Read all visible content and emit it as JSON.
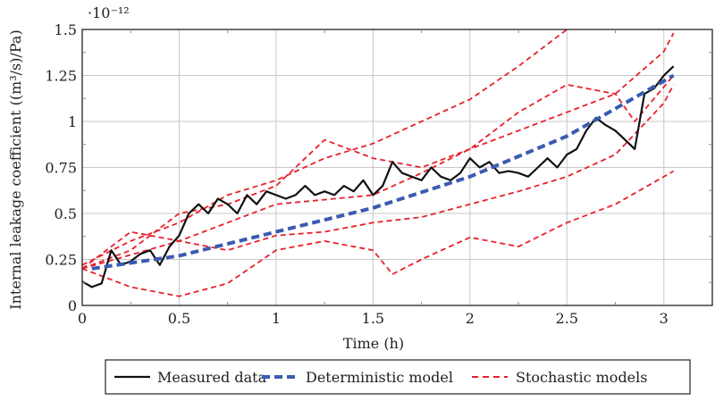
{
  "chart_data": {
    "type": "line",
    "title": "",
    "xlabel": "Time (h)",
    "ylabel": "Internal leakage coefficient ((m³/s)/Pa)",
    "y_multiplier": "·10⁻¹²",
    "xlim": [
      0,
      3.25
    ],
    "ylim": [
      0,
      1.5
    ],
    "xticks": [
      "0",
      "0.5",
      "1",
      "1.5",
      "2",
      "2.5",
      "3"
    ],
    "xtick_values": [
      0,
      0.5,
      1,
      1.5,
      2,
      2.5,
      3
    ],
    "yticks": [
      "0",
      "0.25",
      "0.5",
      "0.75",
      "1",
      "1.25",
      "1.5"
    ],
    "ytick_values": [
      0,
      0.25,
      0.5,
      0.75,
      1,
      1.25,
      1.5
    ],
    "grid": true,
    "legend_position": "bottom",
    "series": [
      {
        "name": "Measured data",
        "style": "solid",
        "color": "#111111",
        "x": [
          0,
          0.05,
          0.1,
          0.15,
          0.2,
          0.25,
          0.3,
          0.35,
          0.4,
          0.45,
          0.5,
          0.55,
          0.6,
          0.65,
          0.7,
          0.75,
          0.8,
          0.85,
          0.9,
          0.95,
          1.0,
          1.05,
          1.1,
          1.15,
          1.2,
          1.25,
          1.3,
          1.35,
          1.4,
          1.45,
          1.5,
          1.55,
          1.6,
          1.65,
          1.7,
          1.75,
          1.8,
          1.85,
          1.9,
          1.95,
          2.0,
          2.05,
          2.1,
          2.15,
          2.2,
          2.25,
          2.3,
          2.35,
          2.4,
          2.45,
          2.5,
          2.55,
          2.6,
          2.65,
          2.7,
          2.75,
          2.8,
          2.85,
          2.9,
          2.95,
          3.0,
          3.05
        ],
        "y": [
          0.13,
          0.1,
          0.12,
          0.3,
          0.22,
          0.24,
          0.28,
          0.3,
          0.22,
          0.32,
          0.38,
          0.5,
          0.55,
          0.5,
          0.58,
          0.55,
          0.5,
          0.6,
          0.55,
          0.62,
          0.6,
          0.58,
          0.6,
          0.65,
          0.6,
          0.62,
          0.6,
          0.65,
          0.62,
          0.68,
          0.6,
          0.65,
          0.78,
          0.72,
          0.7,
          0.68,
          0.75,
          0.7,
          0.68,
          0.72,
          0.8,
          0.75,
          0.78,
          0.72,
          0.73,
          0.72,
          0.7,
          0.75,
          0.8,
          0.75,
          0.82,
          0.85,
          0.95,
          1.02,
          0.98,
          0.95,
          0.9,
          0.85,
          1.15,
          1.18,
          1.25,
          1.3
        ]
      },
      {
        "name": "Deterministic model",
        "style": "dashed",
        "color": "#3a5bb0",
        "x": [
          0.05,
          0.5,
          1.0,
          1.5,
          2.0,
          2.5,
          3.0,
          3.05
        ],
        "y": [
          0.2,
          0.27,
          0.4,
          0.53,
          0.7,
          0.92,
          1.22,
          1.25
        ]
      },
      {
        "name": "Stochastic models",
        "style": "dashed",
        "color": "#e8202a",
        "x": [
          0,
          0.25,
          0.5,
          0.75,
          1.0,
          1.25,
          1.5,
          1.75,
          2.0,
          2.25,
          2.5
        ],
        "y": [
          0.22,
          0.35,
          0.45,
          0.6,
          0.68,
          0.8,
          0.88,
          1.0,
          1.12,
          1.3,
          1.5
        ]
      },
      {
        "style": "dashed",
        "color": "#e8202a",
        "x": [
          0,
          0.25,
          0.5,
          0.75,
          1.0,
          1.25,
          1.5,
          1.75,
          2.0,
          2.25,
          2.5,
          2.75,
          3.0,
          3.05
        ],
        "y": [
          0.2,
          0.3,
          0.5,
          0.55,
          0.65,
          0.9,
          0.8,
          0.75,
          0.85,
          0.95,
          1.05,
          1.15,
          1.38,
          1.48
        ]
      },
      {
        "style": "dashed",
        "color": "#e8202a",
        "x": [
          0,
          0.5,
          1.0,
          1.5,
          1.75,
          2.0,
          2.25,
          2.5,
          2.75,
          2.85,
          3.05
        ],
        "y": [
          0.2,
          0.35,
          0.55,
          0.6,
          0.72,
          0.85,
          1.05,
          1.2,
          1.15,
          1.0,
          1.25
        ]
      },
      {
        "style": "dashed",
        "color": "#e8202a",
        "x": [
          0,
          0.25,
          0.5,
          0.75,
          1.0,
          1.25,
          1.5,
          1.75,
          2.0,
          2.25,
          2.5,
          2.75,
          3.0,
          3.05
        ],
        "y": [
          0.2,
          0.4,
          0.35,
          0.3,
          0.38,
          0.4,
          0.45,
          0.48,
          0.55,
          0.62,
          0.7,
          0.82,
          1.1,
          1.2
        ]
      },
      {
        "style": "dashed",
        "color": "#e8202a",
        "x": [
          0,
          0.25,
          0.5,
          0.75,
          1.0,
          1.25,
          1.5,
          1.6,
          1.75,
          2.0,
          2.25,
          2.5,
          2.75,
          3.0,
          3.05
        ],
        "y": [
          0.2,
          0.1,
          0.05,
          0.12,
          0.3,
          0.35,
          0.3,
          0.17,
          0.25,
          0.37,
          0.32,
          0.45,
          0.55,
          0.7,
          0.73
        ]
      }
    ],
    "legend": [
      {
        "label": "Measured data",
        "style": "solid",
        "color": "#111111"
      },
      {
        "label": "Deterministic model",
        "style": "dashed",
        "color": "#3a5bb0"
      },
      {
        "label": "Stochastic models",
        "style": "dashed",
        "color": "#e8202a"
      }
    ]
  }
}
